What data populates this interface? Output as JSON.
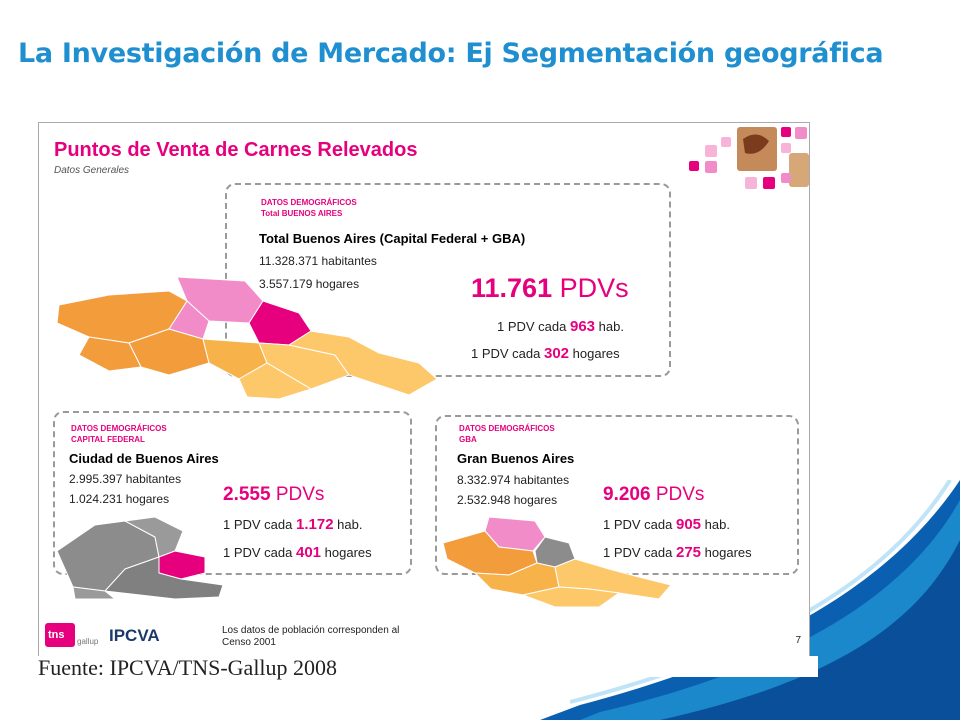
{
  "page_title": "La Investigación de Mercado: Ej Segmentación geográfica",
  "slide": {
    "title": "Puntos de Venta de Carnes Relevados",
    "subtitle": "Datos Generales",
    "total": {
      "label_line1": "DATOS DEMOGRÁFICOS",
      "label_line2": "Total BUENOS AIRES",
      "title": "Total Buenos Aires (Capital Federal + GBA)",
      "habitantes": "11.328.371 habitantes",
      "hogares": "3.557.179 hogares",
      "pdv_count": "11.761",
      "pdv_unit": "PDVs",
      "line1_prefix": "1 PDV cada",
      "line1_value": "963",
      "line1_suffix": "hab.",
      "line2_prefix": "1 PDV cada",
      "line2_value": "302",
      "line2_suffix": "hogares"
    },
    "capital": {
      "label_line1": "DATOS DEMOGRÁFICOS",
      "label_line2": "CAPITAL FEDERAL",
      "title": "Ciudad de Buenos Aires",
      "habitantes": "2.995.397 habitantes",
      "hogares": "1.024.231 hogares",
      "pdv_count": "2.555",
      "pdv_unit": "PDVs",
      "line1_prefix": "1 PDV cada",
      "line1_value": "1.172",
      "line1_suffix": "hab.",
      "line2_prefix": "1 PDV cada",
      "line2_value": "401",
      "line2_suffix": "hogares"
    },
    "gba": {
      "label_line1": "DATOS DEMOGRÁFICOS",
      "label_line2": "GBA",
      "title": "Gran Buenos Aires",
      "habitantes": "8.332.974 habitantes",
      "hogares": "2.532.948 hogares",
      "pdv_count": "9.206",
      "pdv_unit": "PDVs",
      "line1_prefix": "1 PDV cada",
      "line1_value": "905",
      "line1_suffix": "hab.",
      "line2_prefix": "1 PDV cada",
      "line2_value": "275",
      "line2_suffix": "hogares"
    },
    "footnote_line1": "Los datos de población corresponden al",
    "footnote_line2": "Censo 2001",
    "slide_number": "7",
    "logo_tns": "tns",
    "logo_gallup": "gallup",
    "logo_ipcva": "IPCVA"
  },
  "source": "Fuente: IPCVA/TNS-Gallup 2008",
  "colors": {
    "title_blue": "#1f8fd0",
    "magenta": "#e6007e",
    "orange": "#f39c3c",
    "light_orange": "#fcc86a",
    "pink": "#f28cc8",
    "gray_map": "#8c8c8c"
  }
}
